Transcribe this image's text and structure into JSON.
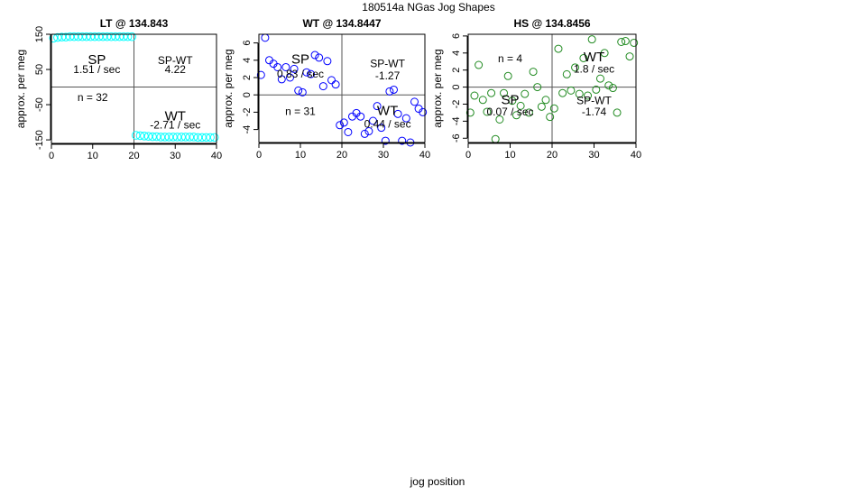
{
  "page": {
    "title": "180514a   NGas Jog Shapes",
    "xlabel": "jog position"
  },
  "chart_data": [
    {
      "type": "scatter",
      "title": "LT @ 134.843",
      "ylabel": "approx. per meg",
      "xlim": [
        0,
        40
      ],
      "ylim": [
        -160,
        150
      ],
      "xticks": [
        0,
        10,
        20,
        30,
        40
      ],
      "yticks": [
        -150,
        -50,
        50,
        150
      ],
      "point_color": "#00FFFF",
      "series": [
        {
          "x": [
            0.5,
            1.5,
            2.5,
            3.5,
            4.5,
            5.5,
            6.5,
            7.5,
            8.5,
            9.5,
            10.5,
            11.5,
            12.5,
            13.5,
            14.5,
            15.5,
            16.5,
            17.5,
            18.5,
            19.5,
            20.5,
            21.5,
            22.5,
            23.5,
            24.5,
            25.5,
            26.5,
            27.5,
            28.5,
            29.5,
            30.5,
            31.5,
            32.5,
            33.5,
            34.5,
            35.5,
            36.5,
            37.5,
            38.5,
            39.5
          ],
          "y": [
            139,
            141,
            142,
            142,
            143,
            143,
            143,
            143,
            143,
            143,
            143,
            143,
            143,
            143,
            143,
            143,
            143,
            143,
            143,
            143,
            -137,
            -138,
            -139,
            -140,
            -141,
            -141,
            -142,
            -142,
            -142,
            -142,
            -142,
            -142,
            -142,
            -142,
            -142,
            -143,
            -143,
            -143,
            -143,
            -143
          ]
        }
      ],
      "annotations": {
        "sp": "SP",
        "sp_rate": "1.51 / sec",
        "spwt": "SP-WT",
        "spwt_val": "4.22",
        "n": "n = 32",
        "wt": "WT",
        "wt_rate": "-2.71 / sec"
      }
    },
    {
      "type": "scatter",
      "title": "WT @ 134.8447",
      "ylabel": "approx. per meg",
      "xlim": [
        0,
        40
      ],
      "ylim": [
        -5.5,
        7
      ],
      "xticks": [
        0,
        10,
        20,
        30,
        40
      ],
      "yticks": [
        -4,
        -2,
        0,
        2,
        4,
        6
      ],
      "point_color": "#0000FF",
      "series": [
        {
          "x": [
            0.5,
            1.5,
            2.5,
            3.5,
            4.5,
            5.5,
            6.5,
            7.5,
            8.5,
            9.5,
            10.5,
            11.5,
            12.5,
            13.5,
            14.5,
            15.5,
            16.5,
            17.5,
            18.5,
            19.5,
            20.5,
            21.5,
            22.5,
            23.5,
            24.5,
            25.5,
            26.5,
            27.5,
            28.5,
            29.5,
            30.5,
            31.5,
            32.5,
            33.5,
            34.5,
            35.5,
            36.5,
            37.5,
            38.5,
            39.5
          ],
          "y": [
            2.3,
            6.6,
            4.0,
            3.6,
            3.2,
            1.8,
            3.2,
            2.0,
            3.0,
            0.5,
            0.3,
            2.6,
            2.4,
            4.6,
            4.3,
            1.0,
            3.9,
            1.7,
            1.2,
            -3.5,
            -3.2,
            -4.3,
            -2.5,
            -2.1,
            -2.5,
            -4.5,
            -4.2,
            -3.0,
            -1.3,
            -3.8,
            -5.3,
            0.4,
            0.6,
            -2.2,
            -5.3,
            -2.7,
            -5.5,
            -0.8,
            -1.6,
            -2.0
          ]
        }
      ],
      "annotations": {
        "sp": "SP",
        "sp_rate": "0.83 / sec",
        "spwt": "SP-WT",
        "spwt_val": "-1.27",
        "n": "n = 31",
        "wt": "WT",
        "wt_rate": "0.44 / sec"
      }
    },
    {
      "type": "scatter",
      "title": "HS @ 134.8456",
      "ylabel": "approx. per meg",
      "xlim": [
        0,
        40
      ],
      "ylim": [
        -6.5,
        6.2
      ],
      "xticks": [
        0,
        10,
        20,
        30,
        40
      ],
      "yticks": [
        -6,
        -4,
        -2,
        0,
        2,
        4,
        6
      ],
      "point_color": "#228B22",
      "series": [
        {
          "x": [
            0.5,
            1.5,
            2.5,
            3.5,
            4.5,
            5.5,
            6.5,
            7.5,
            8.5,
            9.5,
            10.5,
            11.5,
            12.5,
            13.5,
            14.5,
            15.5,
            16.5,
            17.5,
            18.5,
            19.5,
            20.5,
            21.5,
            22.5,
            23.5,
            24.5,
            25.5,
            26.5,
            27.5,
            28.5,
            29.5,
            30.5,
            31.5,
            32.5,
            33.5,
            34.5,
            35.5,
            36.5,
            37.5,
            38.5,
            39.5
          ],
          "y": [
            -3.0,
            -1.0,
            2.6,
            -1.5,
            -2.9,
            -0.7,
            -6.1,
            -3.8,
            -0.7,
            1.3,
            -1.6,
            -3.3,
            -2.2,
            -0.8,
            -3.0,
            1.8,
            0.0,
            -2.3,
            -1.5,
            -3.5,
            -2.5,
            4.5,
            -0.7,
            1.5,
            -0.4,
            2.3,
            -0.8,
            3.4,
            -1.0,
            5.6,
            -0.3,
            1.0,
            4.0,
            0.2,
            -0.1,
            -3.0,
            5.3,
            5.4,
            3.6,
            5.2
          ]
        }
      ],
      "annotations": {
        "sp": "SP",
        "sp_rate": "0.07 / sec",
        "spwt": "SP-WT",
        "spwt_val": "-1.74",
        "n": "n = 4",
        "wt": "WT",
        "wt_rate": "1.8 / sec"
      }
    }
  ]
}
